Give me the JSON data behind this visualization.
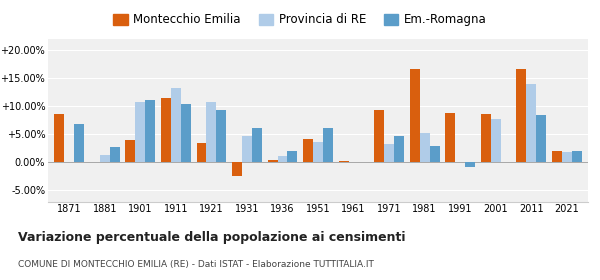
{
  "years": [
    1871,
    1881,
    1901,
    1911,
    1921,
    1931,
    1936,
    1951,
    1961,
    1971,
    1981,
    1991,
    2001,
    2011,
    2021
  ],
  "montecchio": [
    8.6,
    0.0,
    4.0,
    11.5,
    3.5,
    -2.5,
    0.5,
    4.2,
    0.3,
    9.3,
    16.7,
    8.8,
    8.7,
    16.6,
    2.0
  ],
  "provincia": [
    null,
    1.3,
    10.8,
    13.3,
    10.7,
    4.8,
    1.2,
    3.7,
    null,
    3.3,
    5.3,
    null,
    7.8,
    14.0,
    1.8
  ],
  "emilia": [
    6.8,
    2.8,
    11.1,
    10.4,
    9.4,
    6.1,
    2.0,
    6.1,
    null,
    4.7,
    2.9,
    -0.9,
    null,
    8.5,
    2.0
  ],
  "montecchio_color": "#d95f0e",
  "provincia_color": "#b0cce8",
  "emilia_color": "#5b9dc9",
  "background_color": "#f0f0f0",
  "title": "Variazione percentuale della popolazione ai censimenti",
  "subtitle": "COMUNE DI MONTECCHIO EMILIA (RE) - Dati ISTAT - Elaborazione TUTTITALIA.IT",
  "legend_labels": [
    "Montecchio Emilia",
    "Provincia di RE",
    "Em.-Romagna"
  ],
  "ylim": [
    -7,
    22
  ],
  "yticks": [
    -5.0,
    0.0,
    5.0,
    10.0,
    15.0,
    20.0
  ],
  "ytick_labels": [
    "-5.00%",
    "0.00%",
    "+5.00%",
    "+10.00%",
    "+15.00%",
    "+20.00%"
  ]
}
